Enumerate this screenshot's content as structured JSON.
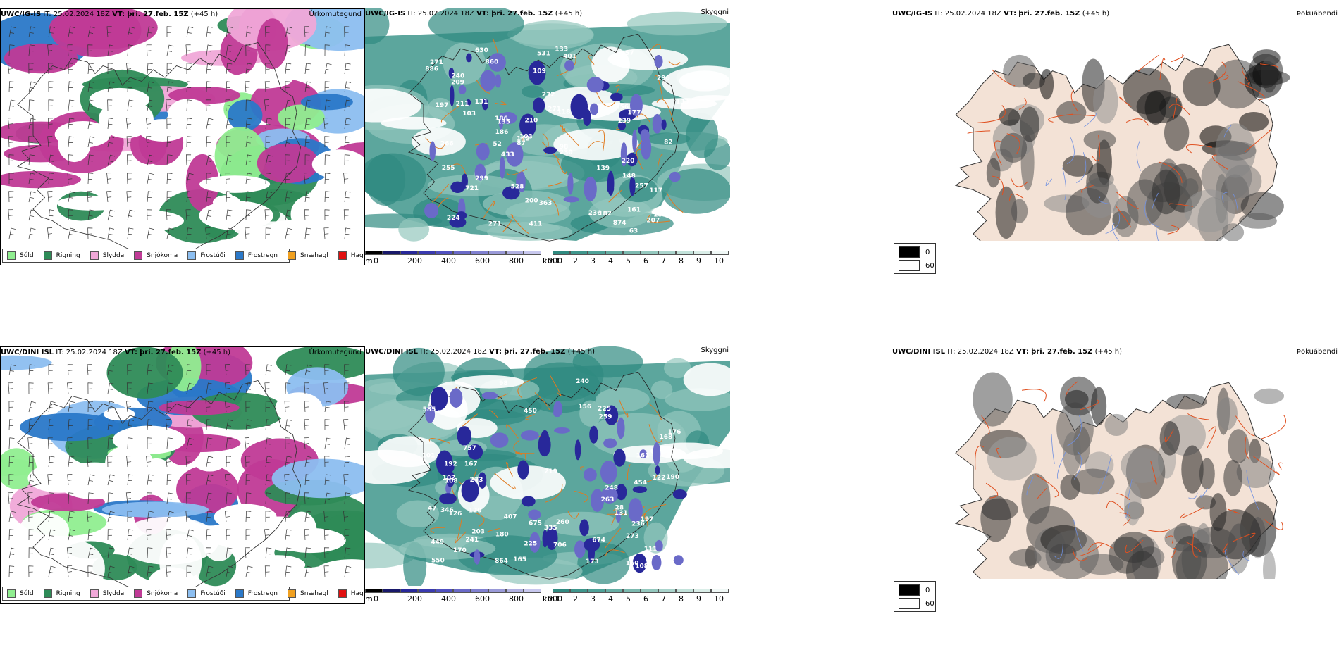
{
  "rows": [
    {
      "model": "UWC/IG-IS",
      "it_label": "IT:",
      "it_value": "25.02.2024 18Z",
      "vt_label": "VT:",
      "vt_value": "þri. 27.feb. 15Z",
      "lead": "(+45 h)",
      "precip_title": "Úrkomutegund",
      "cloud_title": "Skyggni",
      "fog_title": "Þokuábendi"
    },
    {
      "model": "UWC/DINI ISL",
      "it_label": "IT:",
      "it_value": "25.02.2024 18Z",
      "vt_label": "VT:",
      "vt_value": "þri. 27.feb. 15Z",
      "lead": "(+45 h)",
      "precip_title": "Úrkomutegund",
      "cloud_title": "Skyggni",
      "fog_title": "Þokuábendi"
    }
  ],
  "precip_legend": [
    {
      "label": "Súld",
      "color": "#90ee90"
    },
    {
      "label": "Rigning",
      "color": "#2e8b57"
    },
    {
      "label": "Slydda",
      "color": "#f0a8d8"
    },
    {
      "label": "Snjókoma",
      "color": "#c03a96"
    },
    {
      "label": "Frostúði",
      "color": "#8cbef0"
    },
    {
      "label": "Frostregn",
      "color": "#2a78c8"
    },
    {
      "label": "Snæhagl",
      "color": "#f0a020"
    },
    {
      "label": "Haglél",
      "color": "#e01010"
    }
  ],
  "cloudbase_colorbar": {
    "unit": "m",
    "ticks": [
      "0",
      "200",
      "400",
      "600",
      "800",
      "1000"
    ],
    "colors": [
      "#000000",
      "#18186a",
      "#28289a",
      "#3a3ab0",
      "#5050c0",
      "#6a6ac8",
      "#8080d0",
      "#9a9ad8",
      "#b0b0e0",
      "#c8c8ee"
    ]
  },
  "visibility_colorbar": {
    "unit": "km",
    "ticks": [
      "1",
      "2",
      "3",
      "4",
      "5",
      "6",
      "7",
      "8",
      "9",
      "10"
    ],
    "colors": [
      "#2f8a80",
      "#3f968c",
      "#4fa298",
      "#66aea4",
      "#7cbab0",
      "#94c8be",
      "#aad4cc",
      "#c2e2da",
      "#daeee8",
      "#f0f8f6"
    ]
  },
  "fog_legend": [
    {
      "label": "0",
      "color": "#000000"
    },
    {
      "label": "60",
      "color": "#ffffff"
    }
  ],
  "cloud_labels": {
    "top": [
      "721",
      "236",
      "230",
      "266",
      "860",
      "630",
      "411",
      "210",
      "299",
      "118",
      "109",
      "207",
      "34",
      "139",
      "133",
      "103",
      "232",
      "271",
      "161",
      "211",
      "209",
      "433",
      "886",
      "874",
      "271",
      "531",
      "182",
      "133",
      "139",
      "186",
      "63",
      "52",
      "117",
      "197",
      "528",
      "177",
      "255",
      "135",
      "142",
      "131",
      "363",
      "82",
      "220",
      "103",
      "257",
      "224",
      "256",
      "87",
      "98",
      "401",
      "296",
      "200",
      "181",
      "257",
      "271",
      "240",
      "186",
      "148"
    ],
    "bottom": [
      "449",
      "236",
      "407",
      "450",
      "757",
      "454",
      "346",
      "864",
      "203",
      "675",
      "706",
      "273",
      "131",
      "167",
      "282",
      "225",
      "240",
      "190",
      "248",
      "170",
      "241",
      "585",
      "192",
      "176",
      "173",
      "108",
      "156",
      "168",
      "674",
      "335",
      "273",
      "192",
      "122",
      "150",
      "89",
      "120",
      "550",
      "126",
      "263",
      "180",
      "259",
      "28",
      "111",
      "47",
      "225",
      "102",
      "219",
      "161",
      "98",
      "165",
      "260",
      "197",
      "101",
      "108"
    ]
  }
}
